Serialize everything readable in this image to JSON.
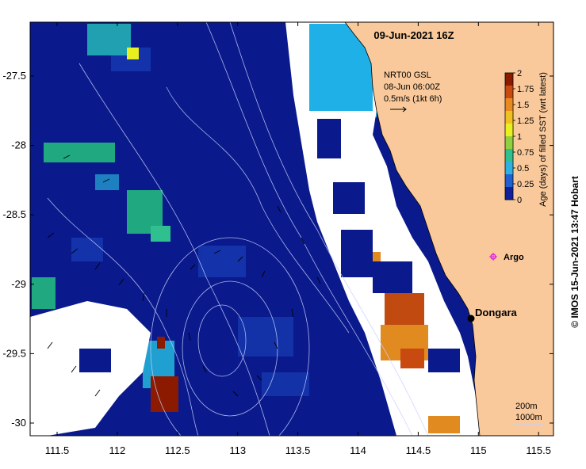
{
  "title": "09-Jun-2021 16Z",
  "current_box": {
    "line1": "NRT00 GSL",
    "line2": "08-Jun 06:00Z",
    "line3": "0.5m/s (1kt 6h)"
  },
  "colorbar": {
    "label": "Age (days) of filled SST (wrt latest)",
    "ticks": [
      "2",
      "1.75",
      "1.5",
      "1.25",
      "1",
      "0.75",
      "0.5",
      "0.25",
      "0"
    ],
    "colors": [
      "#8b1a00",
      "#c84a10",
      "#e88a20",
      "#f0c020",
      "#e8f020",
      "#90d040",
      "#30c090",
      "#30b0e0",
      "#2060d0",
      "#10209a"
    ]
  },
  "axes": {
    "x_ticks": [
      "111.5",
      "112",
      "112.5",
      "113",
      "113.5",
      "114",
      "114.5",
      "115",
      "115.5"
    ],
    "y_ticks": [
      "-27.5",
      "-28",
      "-28.5",
      "-29",
      "-29.5",
      "-30"
    ]
  },
  "places": {
    "dongara": "Dongara",
    "argo": "Argo"
  },
  "scale": {
    "depth1": "200m",
    "depth2": "1000m"
  },
  "credit": "© IMOS 15-Jun-2021 13:47 Hobart",
  "colors": {
    "ocean": "#0a1a8c",
    "land": "#f9c99b",
    "no_data": "#ffffff"
  }
}
